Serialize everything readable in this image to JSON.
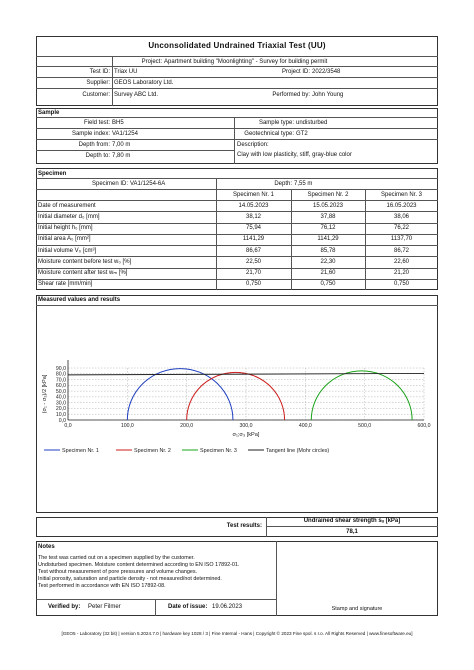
{
  "header": {
    "title": "Unconsolidated Undrained Triaxial Test (UU)",
    "project_label": "Project:",
    "project_value": "Apartment building \"Moonlighting\" - Survey for building permit",
    "test_id_label": "Test ID:",
    "test_id_value": "Triax UU",
    "project_id_label": "Project ID:",
    "project_id_value": "2022/3548",
    "supplier_label": "Supplier:",
    "supplier_value": "GEOS Laboratory Ltd.",
    "customer_label": "Customer:",
    "customer_value": "Survey ABC Ltd.",
    "performed_label": "Performed by:",
    "performed_value": "John Young"
  },
  "sample": {
    "section_title": "Sample",
    "field_test_label": "Field test:",
    "field_test_value": "BH5",
    "sample_type_label": "Sample type:",
    "sample_type_value": "undisturbed",
    "sample_index_label": "Sample index:",
    "sample_index_value": "VA1/1254",
    "geo_type_label": "Geotechnical type:",
    "geo_type_value": "GT2",
    "depth_from_label": "Depth from:",
    "depth_from_value": "7,00 m",
    "description_label": "Description:",
    "depth_to_label": "Depth to:",
    "depth_to_value": "7,80 m",
    "description_value": "Clay with low plasticity, stiff, gray-blue color"
  },
  "specimen": {
    "section_title": "Specimen",
    "specimen_id_label": "Specimen ID:",
    "specimen_id_value": "VA1/1254-6A",
    "depth_label": "Depth:",
    "depth_value": "7,55 m",
    "columns": [
      "Specimen Nr. 1",
      "Specimen Nr. 2",
      "Specimen Nr. 3"
    ],
    "rows": [
      {
        "label": "Date of measurement",
        "values": [
          "14.05.2023",
          "15.05.2023",
          "16.05.2023"
        ]
      },
      {
        "label": "Initial diameter d₀ [mm]",
        "values": [
          "38,12",
          "37,88",
          "38,06"
        ]
      },
      {
        "label": "Initial height h₀ [mm]",
        "values": [
          "75,94",
          "76,12",
          "76,22"
        ]
      },
      {
        "label": "Initial area A₀ [mm²]",
        "values": [
          "1141,29",
          "1141,29",
          "1137,70"
        ]
      },
      {
        "label": "Initial volume V₀ [cm³]",
        "values": [
          "86,67",
          "85,78",
          "86,72"
        ]
      },
      {
        "label": "Moisture content before test w₀ [%]",
        "values": [
          "22,50",
          "22,30",
          "22,60"
        ]
      },
      {
        "label": "Moisture content after test wₘ [%]",
        "values": [
          "21,70",
          "21,60",
          "21,20"
        ]
      },
      {
        "label": "Shear rate [mm/min]",
        "values": [
          "0,750",
          "0,750",
          "0,750"
        ]
      }
    ]
  },
  "measured": {
    "section_title": "Measured values and results"
  },
  "chart_data": {
    "type": "line",
    "xlabel": "σ₁;σ₃ [kPa]",
    "ylabel": "(σ₁ - σ₃)/2 [kPa]",
    "xlim": [
      0,
      600
    ],
    "ylim": [
      0,
      90
    ],
    "x_ticks": [
      "0,0",
      "100,0",
      "200,0",
      "300,0",
      "400,0",
      "500,0",
      "600,0"
    ],
    "y_ticks": [
      "0,0",
      "10,0",
      "20,0",
      "30,0",
      "40,0",
      "50,0",
      "60,0",
      "70,0",
      "80,0",
      "90,0"
    ],
    "series": [
      {
        "name": "Specimen Nr. 1",
        "type": "circle",
        "sigma3": 100,
        "sigma1": 278,
        "color": "#1f3fbf"
      },
      {
        "name": "Specimen Nr. 2",
        "type": "circle",
        "sigma3": 200,
        "sigma1": 365,
        "color": "#cc1c1c"
      },
      {
        "name": "Specimen Nr. 3",
        "type": "circle",
        "sigma3": 410,
        "sigma1": 580,
        "color": "#1aa31a"
      },
      {
        "name": "Tangent line (Mohr circles)",
        "type": "line",
        "x": [
          0,
          600
        ],
        "y": [
          78.1,
          80.6
        ],
        "color": "#222222"
      }
    ]
  },
  "results": {
    "label": "Test results:",
    "header": "Undrained shear strength sᵤ [kPa]",
    "value": "78,1"
  },
  "notes": {
    "title": "Notes",
    "lines": [
      "The test was carried out on a specimen supplied by the customer.",
      "Undisturbed specimen. Moisture content determined according to EN ISO 17892-01.",
      "Test without measurement of pore pressures and volume changes.",
      "Initial porosity, saturation and particle density - not measured/not determined.",
      "Test performed in accordance with EN ISO 17892-08."
    ]
  },
  "footer": {
    "verified_label": "Verified by:",
    "verified_value": "Peter Filmer",
    "date_label": "Date of issue:",
    "date_value": "19.06.2023",
    "stamp_label": "Stamp and signature",
    "software_line": "[GEO5 - Laboratory (32 bit) | version 5.2024.7.0 | hardware key 1028 / 3 | Fine Internal - Hans | Copyright © 2023 Fine spol. s r.o. All Rights Reserved | www.finesoftware.eu]"
  }
}
